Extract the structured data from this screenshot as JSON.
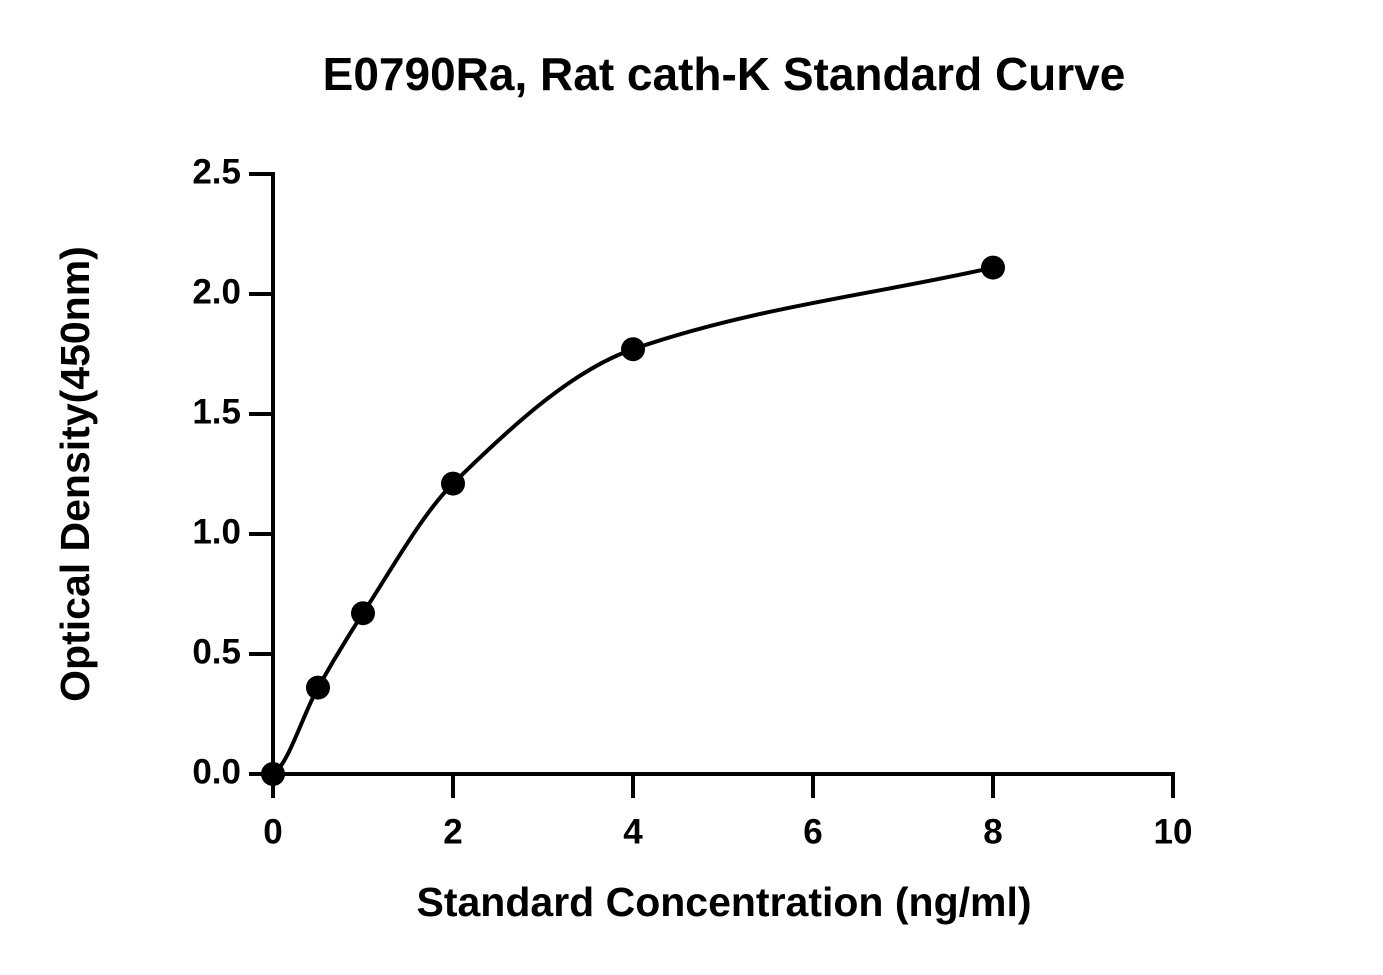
{
  "chart_data": {
    "type": "scatter",
    "title": "E0790Ra, Rat cath-K Standard Curve",
    "xlabel": "Standard Concentration (ng/ml)",
    "ylabel": "Optical Density(450nm)",
    "x": [
      0,
      0.5,
      1,
      2,
      4,
      8
    ],
    "series": [
      {
        "color": "#000000",
        "values": [
          0.0,
          0.36,
          0.67,
          1.21,
          1.77,
          2.11
        ]
      }
    ],
    "curve": "smooth",
    "xlim": [
      0,
      10
    ],
    "xticks": [
      0,
      2,
      4,
      6,
      8,
      10
    ],
    "ylim": [
      0,
      2.5
    ],
    "yticks": [
      {
        "value": 0,
        "label": "0.0"
      },
      0.5,
      {
        "value": 1,
        "label": "1.0"
      },
      1.5,
      {
        "value": 2,
        "label": "2.0"
      },
      2.5
    ]
  }
}
